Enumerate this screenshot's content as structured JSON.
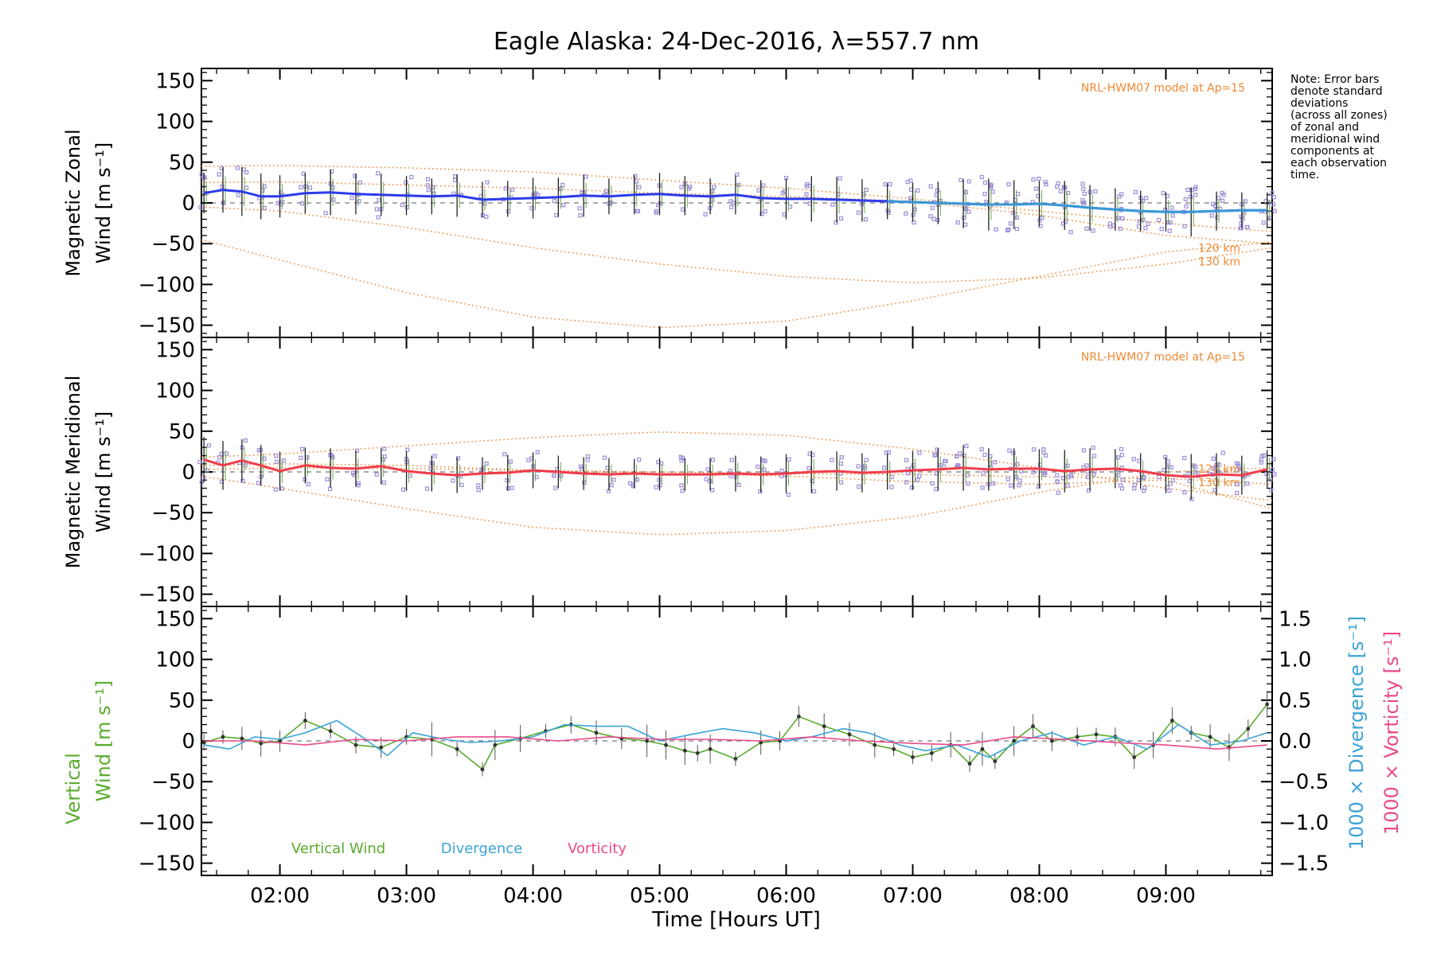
{
  "title": "Eagle Alaska: 24-Dec-2016, λ=557.7 nm",
  "note": [
    "Note: Error bars",
    "denote standard",
    "deviations",
    "(across all zones)",
    "of zonal and",
    "meridional wind",
    "components at",
    "each observation",
    "time."
  ],
  "xlabel": "Time [Hours UT]",
  "colors": {
    "zonal": "#2b3bea",
    "zonal_late": "#3a9ad8",
    "meridional": "#f03c4a",
    "model": "#ee8833",
    "vertical": "#5aab2e",
    "divergence": "#3ba3d6",
    "vorticity": "#ea4a8a",
    "scatter": "#9e8ed8",
    "errorbar": "#000000"
  },
  "chart_data": [
    {
      "type": "line",
      "name": "zonal-panel",
      "ylabel": [
        "Magnetic Zonal",
        "Wind [m s⁻¹]"
      ],
      "ylim": [
        -165,
        165
      ],
      "yticks": [
        150,
        100,
        50,
        0,
        -50,
        -100,
        -150
      ],
      "xlim": [
        1.38,
        9.84
      ],
      "xticks": [
        2,
        3,
        4,
        5,
        6,
        7,
        8,
        9
      ],
      "xtick_labels": [
        "02:00",
        "03:00",
        "04:00",
        "05:00",
        "06:00",
        "07:00",
        "08:00",
        "09:00"
      ],
      "model_label": "NRL-HWM07 model at Ap=15",
      "model_level_labels": [
        "120 km",
        "130 km"
      ],
      "series": [
        {
          "kind": "wind",
          "x": [
            1.4,
            1.55,
            1.7,
            1.85,
            2.0,
            2.2,
            2.4,
            2.6,
            2.8,
            3.0,
            3.2,
            3.4,
            3.6,
            3.8,
            4.0,
            4.2,
            4.4,
            4.6,
            4.8,
            5.0,
            5.2,
            5.4,
            5.6,
            5.8,
            6.0,
            6.2,
            6.4,
            6.6,
            6.8,
            7.0,
            7.2,
            7.4,
            7.6,
            7.8,
            8.0,
            8.2,
            8.4,
            8.6,
            8.8,
            9.0,
            9.2,
            9.4,
            9.6,
            9.8
          ],
          "y": [
            12,
            16,
            14,
            8,
            8,
            12,
            13,
            11,
            10,
            9,
            8,
            9,
            4,
            5,
            6,
            7,
            9,
            8,
            10,
            11,
            9,
            8,
            10,
            6,
            5,
            5,
            4,
            3,
            2,
            1,
            0,
            -1,
            -2,
            -2,
            -1,
            -3,
            -6,
            -8,
            -10,
            -11,
            -11,
            -10,
            -9,
            -9
          ],
          "err": [
            25,
            28,
            30,
            28,
            26,
            25,
            28,
            25,
            26,
            24,
            22,
            26,
            22,
            22,
            25,
            24,
            26,
            22,
            24,
            26,
            24,
            22,
            24,
            22,
            25,
            28,
            28,
            26,
            22,
            24,
            26,
            30,
            32,
            30,
            28,
            30,
            28,
            26,
            25,
            24,
            30,
            24,
            22,
            22
          ]
        },
        {
          "kind": "model",
          "x": [
            1.38,
            2.0,
            3.0,
            4.0,
            5.0,
            6.0,
            7.0,
            8.0,
            9.0,
            9.84
          ],
          "y": [
            45,
            46,
            43,
            38,
            28,
            18,
            5,
            -10,
            -25,
            -35
          ]
        },
        {
          "kind": "model",
          "x": [
            1.38,
            2.0,
            3.0,
            4.0,
            5.0,
            6.0,
            7.0,
            8.0,
            9.0,
            9.84
          ],
          "y": [
            -5,
            -10,
            -30,
            -55,
            -75,
            -90,
            -98,
            -92,
            -75,
            -55
          ]
        },
        {
          "kind": "model",
          "x": [
            1.38,
            2.0,
            3.0,
            4.0,
            5.0,
            6.0,
            7.0,
            8.0,
            9.0,
            9.84
          ],
          "y": [
            -45,
            -70,
            -110,
            -140,
            -153,
            -145,
            -120,
            -90,
            -60,
            -48
          ]
        },
        {
          "kind": "model",
          "x": [
            1.38,
            2.0,
            3.0,
            4.0,
            5.0,
            6.0,
            7.0,
            8.0,
            9.0,
            9.84
          ],
          "y": [
            25,
            26,
            22,
            18,
            12,
            8,
            2,
            -15,
            -40,
            -50
          ]
        }
      ]
    },
    {
      "type": "line",
      "name": "meridional-panel",
      "ylabel": [
        "Magnetic Meridional",
        "Wind [m s⁻¹]"
      ],
      "ylim": [
        -165,
        165
      ],
      "yticks": [
        150,
        100,
        50,
        0,
        -50,
        -100,
        -150
      ],
      "xlim": [
        1.38,
        9.84
      ],
      "xticks": [
        2,
        3,
        4,
        5,
        6,
        7,
        8,
        9
      ],
      "xtick_labels": [
        "02:00",
        "03:00",
        "04:00",
        "05:00",
        "06:00",
        "07:00",
        "08:00",
        "09:00"
      ],
      "model_label": "NRL-HWM07 model at Ap=15",
      "model_level_labels": [
        "120 km",
        "130 km"
      ],
      "series": [
        {
          "kind": "wind",
          "x": [
            1.4,
            1.55,
            1.7,
            1.85,
            2.0,
            2.2,
            2.4,
            2.6,
            2.8,
            3.0,
            3.2,
            3.4,
            3.6,
            3.8,
            4.0,
            4.2,
            4.4,
            4.6,
            4.8,
            5.0,
            5.2,
            5.4,
            5.6,
            5.8,
            6.0,
            6.2,
            6.4,
            6.6,
            6.8,
            7.0,
            7.2,
            7.4,
            7.6,
            7.8,
            8.0,
            8.2,
            8.4,
            8.6,
            8.8,
            9.0,
            9.2,
            9.4,
            9.6,
            9.8
          ],
          "y": [
            15,
            8,
            14,
            8,
            1,
            8,
            5,
            4,
            7,
            1,
            -2,
            -4,
            -2,
            -1,
            2,
            0,
            -2,
            -3,
            -2,
            -3,
            -3,
            -3,
            -2,
            -3,
            -2,
            0,
            1,
            -1,
            0,
            2,
            3,
            5,
            3,
            4,
            4,
            1,
            3,
            4,
            1,
            -4,
            -6,
            -3,
            -4,
            3
          ],
          "err": [
            28,
            30,
            26,
            25,
            24,
            22,
            24,
            22,
            22,
            24,
            22,
            22,
            20,
            22,
            22,
            20,
            20,
            20,
            18,
            20,
            20,
            20,
            22,
            22,
            24,
            26,
            24,
            24,
            22,
            24,
            26,
            28,
            26,
            25,
            24,
            26,
            26,
            24,
            22,
            22,
            28,
            26,
            24,
            24
          ]
        },
        {
          "kind": "model",
          "x": [
            1.38,
            2.0,
            3.0,
            4.0,
            5.0,
            6.0,
            7.0,
            8.0,
            9.0,
            9.84
          ],
          "y": [
            18,
            22,
            32,
            42,
            49,
            45,
            28,
            5,
            -20,
            -35
          ]
        },
        {
          "kind": "model",
          "x": [
            1.38,
            2.0,
            3.0,
            4.0,
            5.0,
            6.0,
            7.0,
            8.0,
            9.0,
            9.84
          ],
          "y": [
            -5,
            -20,
            -45,
            -68,
            -77,
            -72,
            -55,
            -25,
            0,
            5
          ]
        },
        {
          "kind": "model",
          "x": [
            1.38,
            2.0,
            3.0,
            4.0,
            5.0,
            6.0,
            7.0,
            8.0,
            9.0,
            9.84
          ],
          "y": [
            8,
            10,
            8,
            2,
            -2,
            -5,
            -12,
            -15,
            -10,
            -45
          ]
        },
        {
          "kind": "model",
          "x": [
            1.38,
            2.0,
            3.0,
            4.0,
            5.0,
            6.0,
            7.0,
            8.0,
            9.0,
            9.84
          ],
          "y": [
            3,
            5,
            4,
            2,
            0,
            -2,
            -3,
            -6,
            -8,
            -15
          ]
        }
      ]
    },
    {
      "type": "line",
      "name": "vertical-panel",
      "ylabel_vertical": "Vertical",
      "ylabel_wind": "Wind [m s⁻¹]",
      "ylabel_right_div": "1000 × Divergence [s⁻¹]",
      "ylabel_right_vor": "1000 × Vorticity [s⁻¹]",
      "ylim": [
        -165,
        165
      ],
      "yticks": [
        150,
        100,
        50,
        0,
        -50,
        -100,
        -150
      ],
      "y2lim": [
        -1.65,
        1.65
      ],
      "y2ticks": [
        1.5,
        1.0,
        0.5,
        0.0,
        -0.5,
        -1.0,
        -1.5
      ],
      "y2tick_labels": [
        "1.5",
        "1.0",
        "0.5",
        "0.0",
        "−0.5",
        "−1.0",
        "−1.5"
      ],
      "xlim": [
        1.38,
        9.84
      ],
      "xticks": [
        2,
        3,
        4,
        5,
        6,
        7,
        8,
        9
      ],
      "xtick_labels": [
        "02:00",
        "03:00",
        "04:00",
        "05:00",
        "06:00",
        "07:00",
        "08:00",
        "09:00"
      ],
      "legend": [
        "Vertical Wind",
        "Divergence",
        "Vorticity"
      ],
      "series": [
        {
          "name": "Vertical Wind",
          "axis": "left",
          "x": [
            1.4,
            1.55,
            1.7,
            1.85,
            2.0,
            2.2,
            2.4,
            2.6,
            2.8,
            3.0,
            3.2,
            3.4,
            3.6,
            3.7,
            3.9,
            4.1,
            4.3,
            4.5,
            4.7,
            4.9,
            5.05,
            5.2,
            5.3,
            5.4,
            5.6,
            5.8,
            5.95,
            6.1,
            6.3,
            6.5,
            6.7,
            6.85,
            7.0,
            7.15,
            7.3,
            7.45,
            7.55,
            7.65,
            7.8,
            7.95,
            8.1,
            8.3,
            8.45,
            8.6,
            8.75,
            8.9,
            9.05,
            9.2,
            9.35,
            9.5,
            9.65,
            9.8
          ],
          "y": [
            -2,
            5,
            3,
            -3,
            0,
            25,
            12,
            -5,
            -8,
            5,
            2,
            -10,
            -35,
            -5,
            3,
            12,
            20,
            10,
            3,
            0,
            -5,
            -12,
            -15,
            -10,
            -22,
            -2,
            0,
            30,
            18,
            8,
            -5,
            -10,
            -20,
            -15,
            -5,
            -28,
            -10,
            -25,
            0,
            18,
            0,
            5,
            8,
            5,
            -20,
            -5,
            25,
            10,
            5,
            -8,
            15,
            45
          ]
        },
        {
          "name": "Divergence",
          "axis": "right",
          "x": [
            1.4,
            1.6,
            1.8,
            2.0,
            2.2,
            2.45,
            2.65,
            2.85,
            3.05,
            3.3,
            3.5,
            3.75,
            4.0,
            4.25,
            4.5,
            4.75,
            5.0,
            5.25,
            5.5,
            5.75,
            6.0,
            6.2,
            6.45,
            6.65,
            6.9,
            7.1,
            7.35,
            7.6,
            7.85,
            8.1,
            8.35,
            8.6,
            8.85,
            9.1,
            9.35,
            9.6,
            9.8
          ],
          "y": [
            -0.05,
            -0.1,
            0.05,
            0.02,
            0.1,
            0.25,
            0.05,
            -0.18,
            0.1,
            0.02,
            -0.02,
            0.0,
            0.05,
            0.2,
            0.18,
            0.18,
            0.0,
            0.08,
            0.15,
            0.1,
            0.0,
            0.05,
            0.15,
            0.1,
            -0.05,
            -0.12,
            -0.05,
            -0.2,
            0.0,
            0.1,
            -0.05,
            0.05,
            -0.1,
            0.2,
            -0.05,
            0.0,
            0.1
          ]
        },
        {
          "name": "Vorticity",
          "axis": "right",
          "x": [
            1.4,
            1.8,
            2.2,
            2.6,
            3.0,
            3.4,
            3.8,
            4.2,
            4.6,
            5.0,
            5.4,
            5.8,
            6.2,
            6.6,
            7.0,
            7.4,
            7.8,
            8.2,
            8.6,
            9.0,
            9.4,
            9.8
          ],
          "y": [
            0.0,
            0.0,
            -0.05,
            0.02,
            0.0,
            0.05,
            0.05,
            0.0,
            0.05,
            0.02,
            0.02,
            0.0,
            0.05,
            0.0,
            -0.03,
            -0.05,
            0.05,
            0.02,
            -0.02,
            -0.05,
            -0.1,
            -0.05
          ]
        }
      ]
    }
  ]
}
